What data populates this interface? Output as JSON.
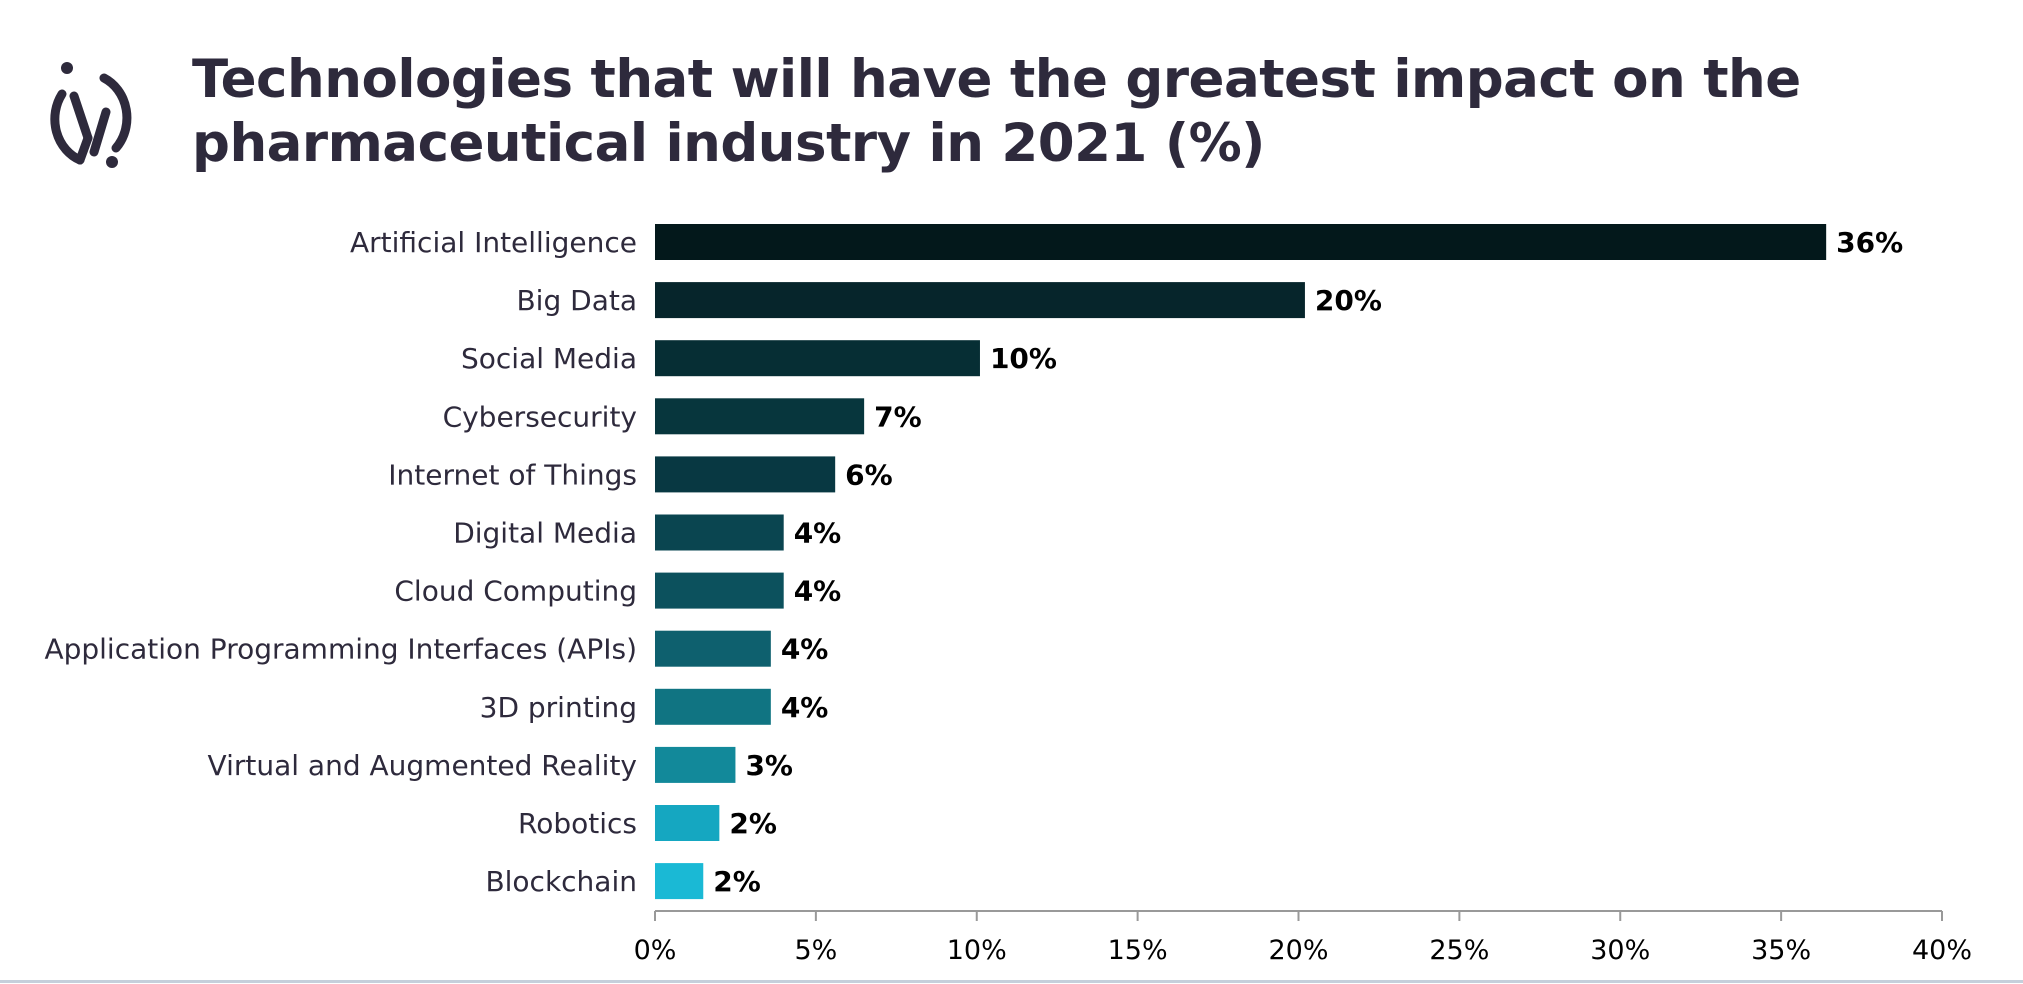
{
  "title_lines": [
    "Technologies that will have the greatest impact on the",
    "pharmaceutical industry in 2021 (%)"
  ],
  "logo": {
    "icon": "circle-i-logo-icon",
    "color": "#2e2a3c"
  },
  "chart_data": {
    "type": "bar",
    "orientation": "horizontal",
    "title": "Technologies that will have the greatest impact on the pharmaceutical industry in 2021 (%)",
    "categories": [
      "Artificial Intelligence",
      "Big Data",
      "Social Media",
      "Cybersecurity",
      "Internet of Things",
      "Digital Media",
      "Cloud Computing",
      "Application Programming Interfaces (APIs)",
      "3D printing",
      "Virtual and Augmented Reality",
      "Robotics",
      "Blockchain"
    ],
    "values": [
      36.4,
      20.2,
      10.1,
      6.5,
      5.6,
      4.0,
      4.0,
      3.6,
      3.6,
      2.5,
      2.0,
      1.5
    ],
    "data_labels": [
      "36%",
      "20%",
      "10%",
      "7%",
      "6%",
      "4%",
      "4%",
      "4%",
      "4%",
      "3%",
      "2%",
      "2%"
    ],
    "colors": [
      "#03181b",
      "#06252b",
      "#062e34",
      "#07363d",
      "#083842",
      "#0a4550",
      "#0c515d",
      "#0e606e",
      "#107482",
      "#12899a",
      "#15a7c1",
      "#1ab9d5"
    ],
    "xlim": [
      0,
      40
    ],
    "xticks": [
      "0%",
      "5%",
      "10%",
      "15%",
      "20%",
      "25%",
      "30%",
      "35%",
      "40%"
    ],
    "xlabel": "",
    "ylabel": "",
    "grid": false,
    "legend": "none"
  }
}
